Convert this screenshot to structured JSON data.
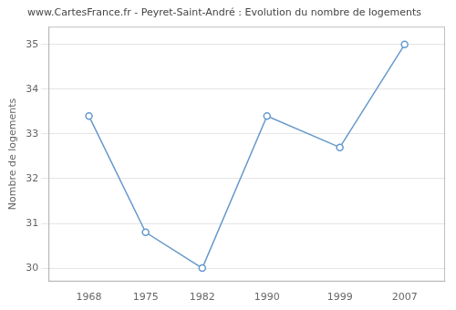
{
  "chart_data": {
    "type": "line",
    "title": "www.CartesFrance.fr - Peyret-Saint-André : Evolution du nombre de logements",
    "ylabel": "Nombre de logements",
    "x": [
      1968,
      1975,
      1982,
      1990,
      1999,
      2007
    ],
    "values": [
      33.4,
      30.8,
      30.0,
      33.4,
      32.7,
      35.0
    ],
    "color": "#6699cc",
    "marker": "circle",
    "xlim": [
      1963,
      2012
    ],
    "xticks": [
      1968,
      1975,
      1982,
      1990,
      1999,
      2007
    ],
    "ylim": [
      29.7,
      35.4
    ],
    "yticks": [
      30,
      31,
      32,
      33,
      34,
      35
    ],
    "grid": "y"
  }
}
